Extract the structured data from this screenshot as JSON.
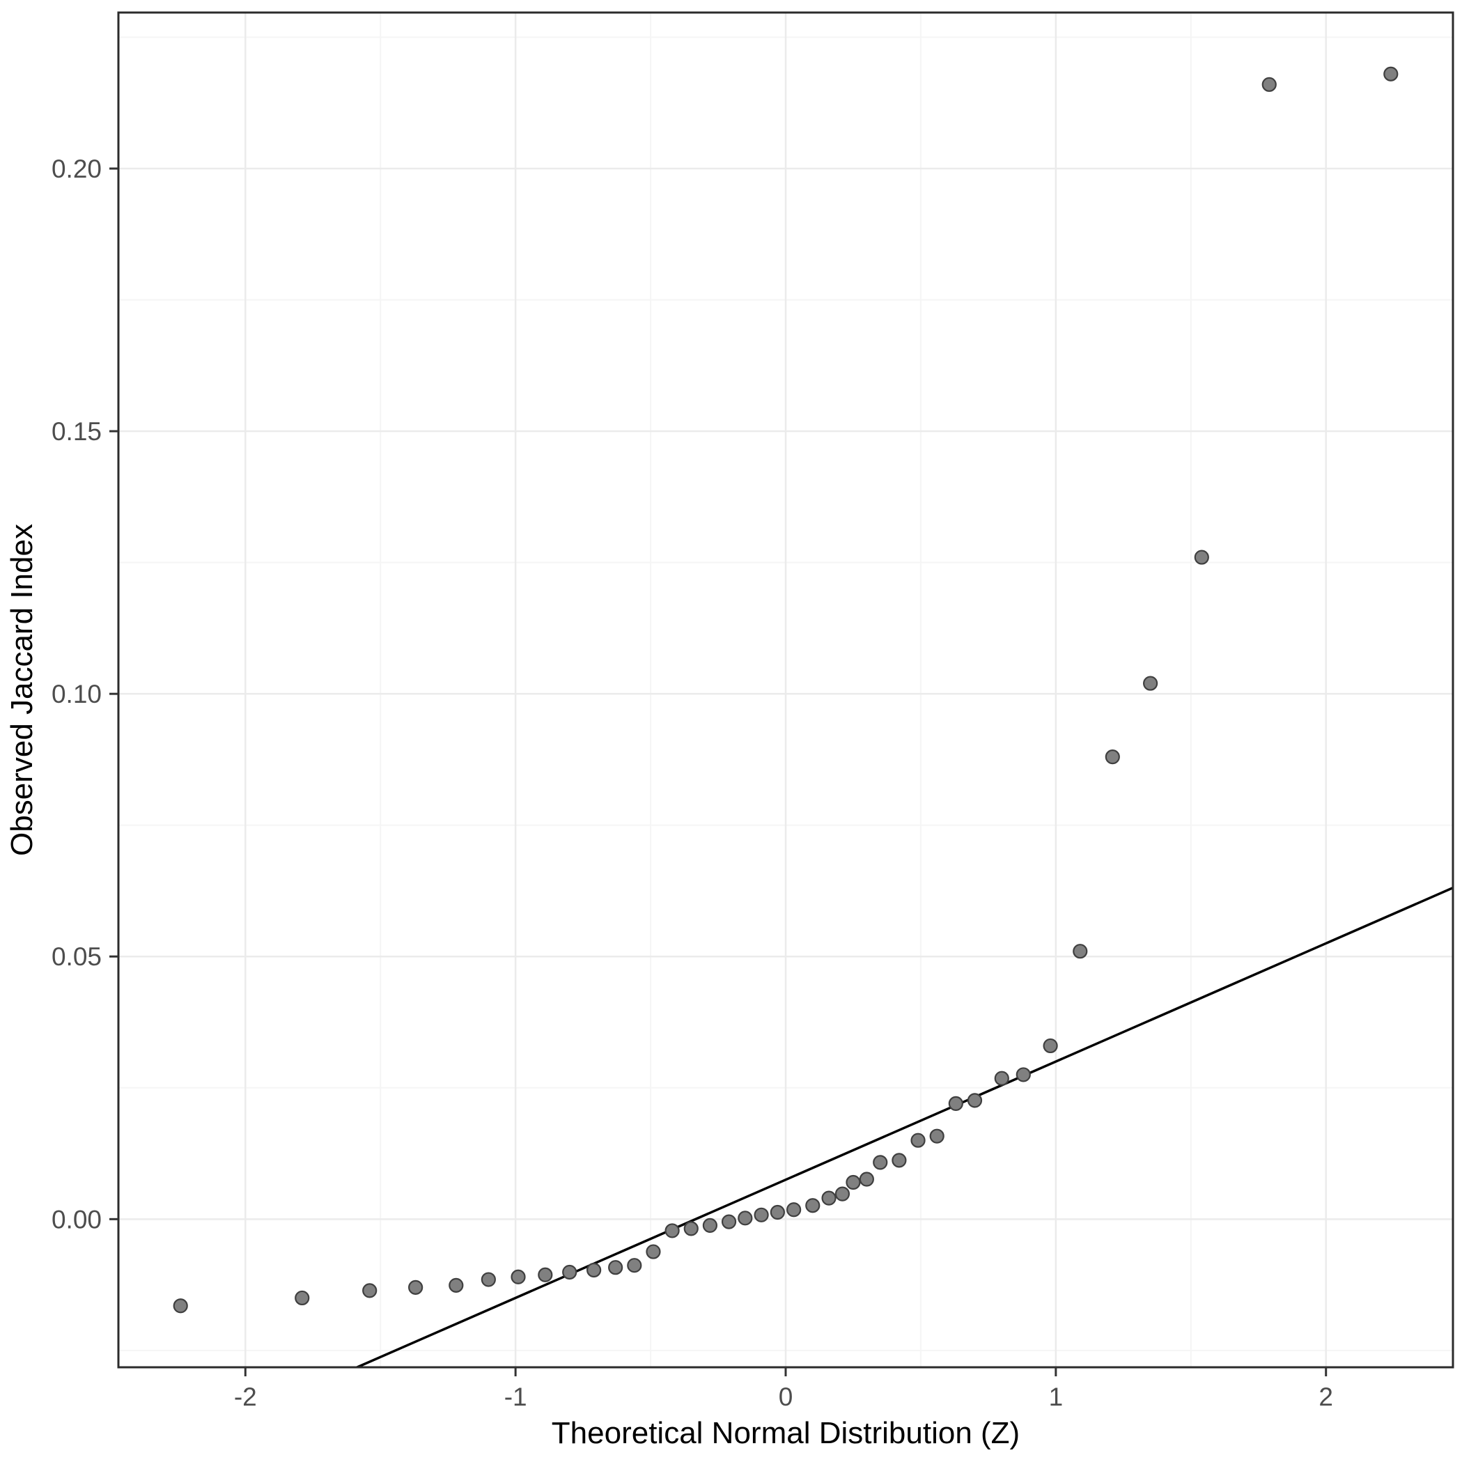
{
  "chart_data": {
    "type": "scatter",
    "title": "",
    "xlabel": "Theoretical Normal Distribution (Z)",
    "ylabel": "Observed Jaccard Index",
    "xlim": [
      -2.47,
      2.47
    ],
    "ylim": [
      -0.0282,
      0.2297
    ],
    "x_ticks": [
      -2,
      -1,
      0,
      1,
      2
    ],
    "x_tick_labels": [
      "-2",
      "-1",
      "0",
      "1",
      "2"
    ],
    "y_ticks": [
      0.0,
      0.05,
      0.1,
      0.15,
      0.2
    ],
    "y_tick_labels": [
      "0.00",
      "0.05",
      "0.10",
      "0.15",
      "0.20"
    ],
    "x_minor_ticks": [
      -1.5,
      -0.5,
      0.5,
      1.5
    ],
    "y_minor_ticks": [
      -0.025,
      0.025,
      0.075,
      0.125,
      0.175,
      0.225
    ],
    "grid": "major+minor",
    "legend": "none",
    "reference_line": {
      "slope": 0.0225,
      "intercept": 0.0075
    },
    "points": [
      [
        -2.24,
        -0.0165
      ],
      [
        -1.79,
        -0.015
      ],
      [
        -1.54,
        -0.0136
      ],
      [
        -1.37,
        -0.013
      ],
      [
        -1.22,
        -0.0126
      ],
      [
        -1.1,
        -0.0115
      ],
      [
        -0.99,
        -0.011
      ],
      [
        -0.89,
        -0.0106
      ],
      [
        -0.8,
        -0.0101
      ],
      [
        -0.71,
        -0.0097
      ],
      [
        -0.63,
        -0.0092
      ],
      [
        -0.56,
        -0.0088
      ],
      [
        -0.49,
        -0.0062
      ],
      [
        -0.42,
        -0.0022
      ],
      [
        -0.35,
        -0.0018
      ],
      [
        -0.28,
        -0.0012
      ],
      [
        -0.21,
        -0.0005
      ],
      [
        -0.15,
        0.0002
      ],
      [
        -0.09,
        0.0008
      ],
      [
        -0.03,
        0.0013
      ],
      [
        0.03,
        0.0018
      ],
      [
        0.1,
        0.0026
      ],
      [
        0.16,
        0.004
      ],
      [
        0.21,
        0.0048
      ],
      [
        0.25,
        0.007
      ],
      [
        0.3,
        0.0076
      ],
      [
        0.35,
        0.0108
      ],
      [
        0.42,
        0.0112
      ],
      [
        0.49,
        0.015
      ],
      [
        0.56,
        0.0158
      ],
      [
        0.63,
        0.022
      ],
      [
        0.7,
        0.0226
      ],
      [
        0.8,
        0.0268
      ],
      [
        0.88,
        0.0275
      ],
      [
        0.98,
        0.033
      ],
      [
        1.09,
        0.051
      ],
      [
        1.21,
        0.088
      ],
      [
        1.35,
        0.102
      ],
      [
        1.54,
        0.126
      ],
      [
        1.79,
        0.216
      ],
      [
        2.24,
        0.218
      ]
    ],
    "colors": {
      "point_fill": "#808080",
      "point_stroke": "#3f3f3f",
      "reference_line": "#000000",
      "grid_major": "#ebebeb",
      "grid_minor": "#f5f5f5",
      "panel_border": "#2b2b2b",
      "panel_background": "#ffffff",
      "tick_mark": "#333333"
    }
  }
}
